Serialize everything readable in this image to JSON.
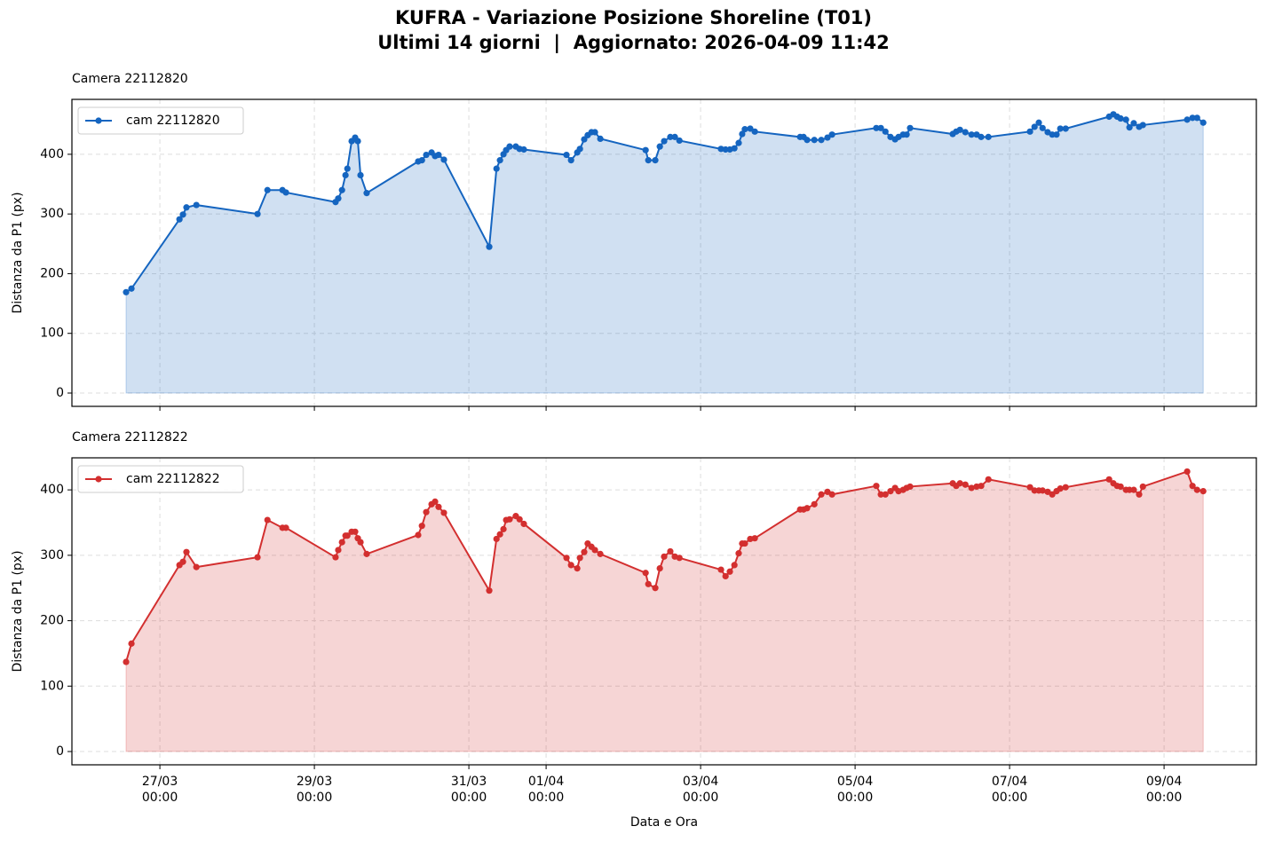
{
  "title": "KUFRA - Variazione Posizione Shoreline (T01)",
  "subtitle": "Ultimi 14 giorni  |  Aggiornato: 2026-04-09 11:42",
  "chart_data": [
    {
      "type": "line",
      "title": "Camera 22112820",
      "ylabel": "Distanza da P1 (px)",
      "x": [
        "26/03 13:30",
        "26/03 15:10",
        "27/03 06:05",
        "27/03 07:10",
        "27/03 08:15",
        "27/03 11:20",
        "28/03 06:20",
        "28/03 09:25",
        "28/03 14:05",
        "28/03 15:10",
        "29/03 06:35",
        "29/03 07:25",
        "29/03 08:35",
        "29/03 09:40",
        "29/03 10:15",
        "29/03 11:35",
        "29/03 12:40",
        "29/03 13:30",
        "29/03 14:20",
        "29/03 16:15",
        "30/03 08:15",
        "30/03 09:25",
        "30/03 10:45",
        "30/03 12:25",
        "30/03 13:30",
        "30/03 14:35",
        "30/03 16:15",
        "31/03 06:20",
        "31/03 08:35",
        "31/03 09:40",
        "31/03 10:45",
        "31/03 11:35",
        "31/03 12:40",
        "31/03 14:35",
        "31/03 15:45",
        "31/03 17:05",
        "01/04 06:20",
        "01/04 07:45",
        "01/04 09:40",
        "01/04 10:30",
        "01/04 11:50",
        "01/04 12:55",
        "01/04 14:05",
        "01/04 15:10",
        "01/04 16:50",
        "02/04 06:55",
        "02/04 07:45",
        "02/04 09:55",
        "02/04 11:20",
        "02/04 12:40",
        "02/04 14:35",
        "02/04 16:00",
        "02/04 17:25",
        "03/04 06:20",
        "03/04 07:45",
        "03/04 09:05",
        "03/04 10:30",
        "03/04 11:50",
        "03/04 12:55",
        "03/04 13:45",
        "03/04 15:25",
        "03/04 16:50",
        "04/04 06:55",
        "04/04 08:00",
        "04/04 09:05",
        "04/04 11:20",
        "04/04 13:30",
        "04/04 15:25",
        "04/04 16:50",
        "05/04 06:35",
        "05/04 08:00",
        "05/04 09:25",
        "05/04 11:00",
        "05/04 12:25",
        "05/04 13:30",
        "05/04 14:55",
        "05/04 16:00",
        "05/04 17:05",
        "06/04 06:20",
        "06/04 07:25",
        "06/04 08:35",
        "06/04 10:15",
        "06/04 12:10",
        "06/04 13:45",
        "06/04 15:10",
        "06/04 17:25",
        "07/04 06:20",
        "07/04 07:45",
        "07/04 09:05",
        "07/04 10:15",
        "07/04 11:50",
        "07/04 13:15",
        "07/04 14:35",
        "07/04 15:45",
        "07/04 17:25",
        "08/04 06:55",
        "08/04 08:15",
        "08/04 09:25",
        "08/04 10:30",
        "08/04 12:10",
        "08/04 13:15",
        "08/04 14:35",
        "08/04 16:15",
        "08/04 17:25",
        "09/04 07:10",
        "09/04 08:50",
        "09/04 10:15",
        "09/04 12:10"
      ],
      "series": [
        {
          "name": "cam 22112820",
          "color": "#1565c0",
          "values": [
            169,
            175,
            291,
            299,
            311,
            315,
            300,
            340,
            340,
            336,
            320,
            326,
            340,
            365,
            376,
            422,
            428,
            422,
            365,
            335,
            388,
            390,
            399,
            403,
            397,
            399,
            391,
            245,
            376,
            390,
            400,
            407,
            413,
            413,
            409,
            408,
            399,
            390,
            403,
            409,
            425,
            432,
            437,
            437,
            426,
            407,
            390,
            390,
            413,
            422,
            429,
            429,
            423,
            409,
            408,
            408,
            410,
            419,
            434,
            442,
            443,
            438,
            429,
            429,
            424,
            424,
            424,
            428,
            433,
            444,
            444,
            438,
            429,
            425,
            429,
            433,
            433,
            444,
            434,
            438,
            441,
            437,
            433,
            433,
            429,
            429,
            438,
            446,
            453,
            444,
            437,
            433,
            433,
            443,
            443,
            463,
            467,
            463,
            460,
            458,
            445,
            452,
            446,
            449,
            458,
            461,
            461,
            453
          ]
        }
      ],
      "area": true,
      "legend": "upper left",
      "grid": true,
      "show_xticklabels": false,
      "xlim": [
        "25/03 20:40",
        "10/04 04:40"
      ],
      "xticks": [
        "27/03 00:00",
        "29/03 00:00",
        "31/03 00:00",
        "01/04 00:00",
        "03/04 00:00",
        "05/04 00:00",
        "07/04 00:00",
        "09/04 00:00"
      ],
      "ylim": [
        -22.3,
        492
      ],
      "yticks": [
        0,
        100,
        200,
        300,
        400
      ]
    },
    {
      "type": "line",
      "title": "Camera 22112822",
      "ylabel": "Distanza da P1 (px)",
      "xlabel": "Data e Ora",
      "x": [
        "26/03 13:30",
        "26/03 15:10",
        "27/03 06:05",
        "27/03 07:10",
        "27/03 08:15",
        "27/03 11:20",
        "28/03 06:20",
        "28/03 09:25",
        "28/03 14:05",
        "28/03 15:10",
        "29/03 06:35",
        "29/03 07:25",
        "29/03 08:35",
        "29/03 09:40",
        "29/03 10:15",
        "29/03 11:35",
        "29/03 12:40",
        "29/03 13:30",
        "29/03 14:20",
        "29/03 16:15",
        "30/03 08:15",
        "30/03 09:25",
        "30/03 10:45",
        "30/03 12:25",
        "30/03 13:30",
        "30/03 14:35",
        "30/03 16:15",
        "31/03 06:20",
        "31/03 08:35",
        "31/03 09:40",
        "31/03 10:45",
        "31/03 11:35",
        "31/03 12:40",
        "31/03 14:35",
        "31/03 15:45",
        "31/03 17:05",
        "01/04 06:20",
        "01/04 07:45",
        "01/04 09:40",
        "01/04 10:30",
        "01/04 11:50",
        "01/04 12:55",
        "01/04 14:05",
        "01/04 15:10",
        "01/04 16:50",
        "02/04 06:55",
        "02/04 07:45",
        "02/04 09:55",
        "02/04 11:20",
        "02/04 12:40",
        "02/04 14:35",
        "02/04 16:00",
        "02/04 17:25",
        "03/04 06:20",
        "03/04 07:45",
        "03/04 09:05",
        "03/04 10:30",
        "03/04 11:50",
        "03/04 12:55",
        "03/04 13:45",
        "03/04 15:25",
        "03/04 16:50",
        "04/04 06:55",
        "04/04 08:00",
        "04/04 09:05",
        "04/04 11:20",
        "04/04 13:30",
        "04/04 15:25",
        "04/04 16:50",
        "05/04 06:35",
        "05/04 08:00",
        "05/04 09:25",
        "05/04 11:00",
        "05/04 12:25",
        "05/04 13:30",
        "05/04 14:55",
        "05/04 16:00",
        "05/04 17:05",
        "06/04 06:20",
        "06/04 07:25",
        "06/04 08:35",
        "06/04 10:15",
        "06/04 12:10",
        "06/04 13:45",
        "06/04 15:10",
        "06/04 17:25",
        "07/04 06:20",
        "07/04 07:45",
        "07/04 09:05",
        "07/04 10:15",
        "07/04 11:50",
        "07/04 13:15",
        "07/04 14:35",
        "07/04 15:45",
        "07/04 17:25",
        "08/04 06:55",
        "08/04 08:15",
        "08/04 09:25",
        "08/04 10:30",
        "08/04 12:10",
        "08/04 13:15",
        "08/04 14:35",
        "08/04 16:15",
        "08/04 17:25",
        "09/04 07:10",
        "09/04 08:50",
        "09/04 10:15",
        "09/04 12:10"
      ],
      "series": [
        {
          "name": "cam 22112822",
          "color": "#d32f2f",
          "values": [
            137,
            165,
            285,
            290,
            305,
            282,
            297,
            354,
            342,
            342,
            297,
            308,
            320,
            330,
            330,
            336,
            336,
            326,
            320,
            302,
            331,
            345,
            366,
            378,
            382,
            374,
            365,
            246,
            325,
            332,
            340,
            354,
            355,
            360,
            355,
            348,
            296,
            285,
            280,
            296,
            305,
            318,
            313,
            308,
            302,
            273,
            256,
            250,
            280,
            298,
            306,
            298,
            296,
            278,
            268,
            275,
            285,
            303,
            318,
            318,
            325,
            326,
            370,
            370,
            372,
            378,
            393,
            397,
            393,
            406,
            393,
            393,
            398,
            403,
            398,
            400,
            403,
            405,
            410,
            406,
            410,
            408,
            403,
            405,
            406,
            416,
            404,
            399,
            399,
            399,
            397,
            393,
            398,
            402,
            404,
            416,
            410,
            406,
            405,
            400,
            400,
            400,
            393,
            405,
            428,
            406,
            400,
            398
          ]
        }
      ],
      "area": true,
      "legend": "upper left",
      "grid": true,
      "show_xticklabels": true,
      "xlim": [
        "25/03 20:40",
        "10/04 04:40"
      ],
      "xticks": [
        {
          "value": "27/03 00:00",
          "label": "27/03\n00:00"
        },
        {
          "value": "29/03 00:00",
          "label": "29/03\n00:00"
        },
        {
          "value": "31/03 00:00",
          "label": "31/03\n00:00"
        },
        {
          "value": "01/04 00:00",
          "label": "01/04\n00:00"
        },
        {
          "value": "03/04 00:00",
          "label": "03/04\n00:00"
        },
        {
          "value": "05/04 00:00",
          "label": "05/04\n00:00"
        },
        {
          "value": "07/04 00:00",
          "label": "07/04\n00:00"
        },
        {
          "value": "09/04 00:00",
          "label": "09/04\n00:00"
        }
      ],
      "ylim": [
        -20.3,
        449
      ],
      "yticks": [
        0,
        100,
        200,
        300,
        400
      ]
    }
  ]
}
